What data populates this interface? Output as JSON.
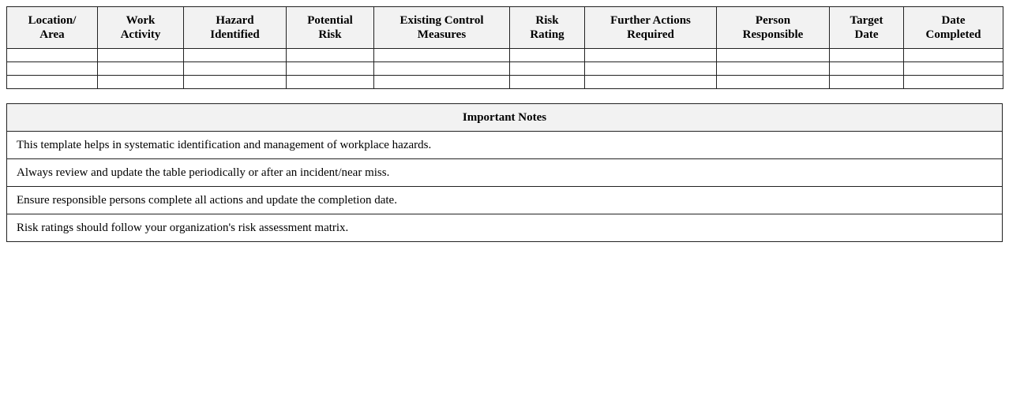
{
  "hazard_table": {
    "headers": [
      [
        "Location/",
        "Area"
      ],
      [
        "Work",
        "Activity"
      ],
      [
        "Hazard",
        "Identified"
      ],
      [
        "Potential",
        "Risk"
      ],
      [
        "Existing Control",
        "Measures"
      ],
      [
        "Risk",
        "Rating"
      ],
      [
        "Further Actions",
        "Required"
      ],
      [
        "Person",
        "Responsible"
      ],
      [
        "Target",
        "Date"
      ],
      [
        "Date",
        "Completed"
      ]
    ],
    "row_count": 3
  },
  "notes": {
    "title": "Important Notes",
    "items": [
      "This template helps in systematic identification and management of workplace hazards.",
      "Always review and update the table periodically or after an incident/near miss.",
      "Ensure responsible persons complete all actions and update the completion date.",
      "Risk ratings should follow your organization's risk assessment matrix."
    ]
  }
}
